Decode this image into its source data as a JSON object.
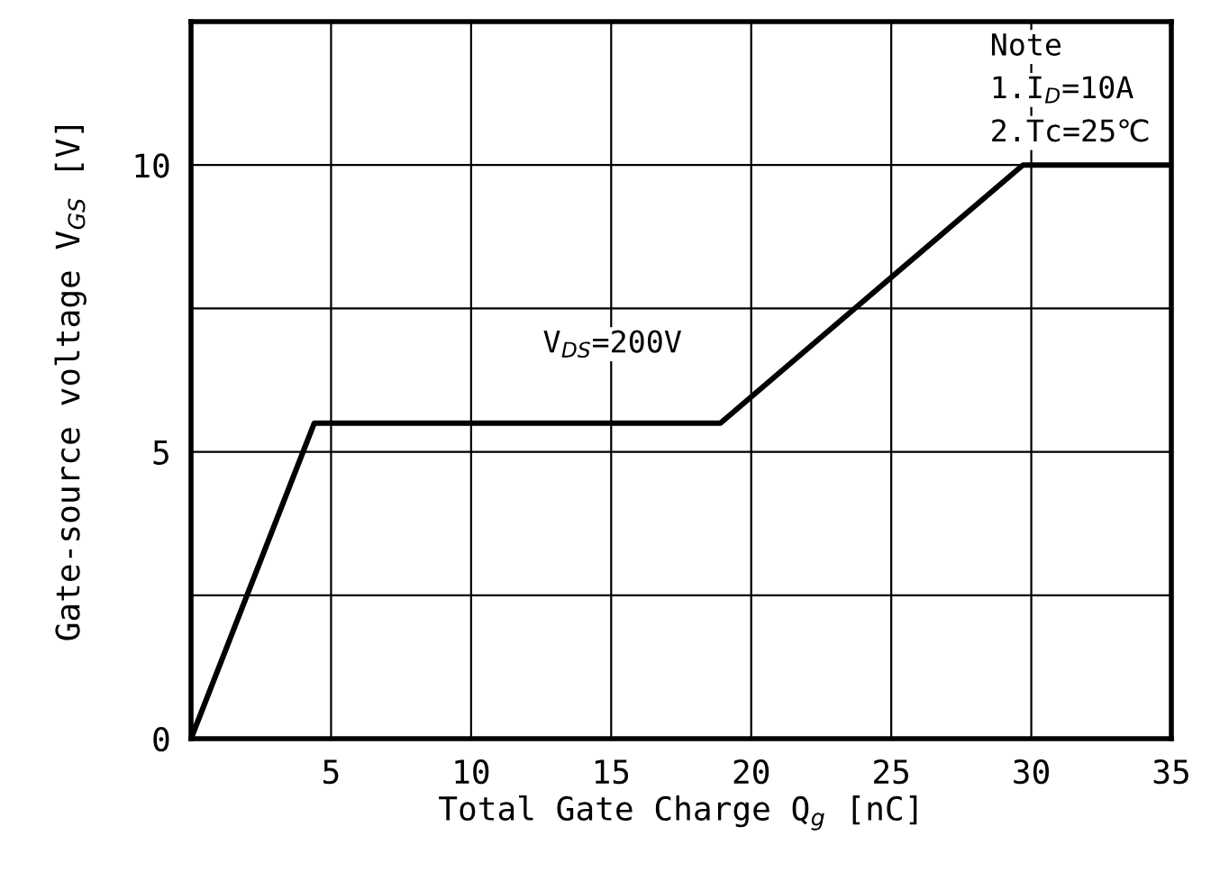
{
  "chart_data": {
    "type": "line",
    "xlabel": "Total Gate Charge Q$_{g}$ [nC]",
    "ylabel": "Gate-source voltage V$_{GS}$ [V]",
    "x": [
      0,
      4.4,
      18.9,
      29.7,
      35
    ],
    "series": [
      {
        "color": "#000000",
        "values": [
          0,
          5.5,
          5.5,
          10,
          10
        ]
      }
    ],
    "xlim": [
      0,
      35
    ],
    "ylim": [
      0,
      12.5
    ],
    "xticks": [
      {
        "value": 0,
        "label": null
      },
      5,
      10,
      15,
      20,
      25,
      30,
      35
    ],
    "yticks": [
      0,
      {
        "value": 2.5,
        "label": null
      },
      5,
      {
        "value": 7.5,
        "label": null
      },
      10
    ],
    "grid": true,
    "line_style": "solid",
    "marker": "none",
    "annotations": [
      "V$_{DS}$=200V",
      "Note",
      "1.I$_{D}$=10A",
      "2.Tc=25℃"
    ]
  }
}
